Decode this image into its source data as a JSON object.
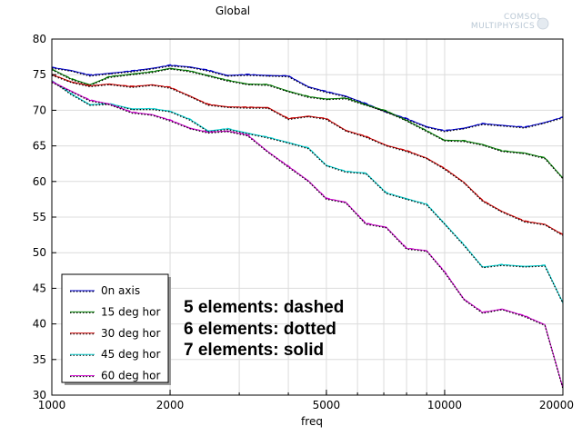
{
  "chart_data": {
    "type": "line",
    "title": "Global",
    "xlabel": "freq",
    "ylabel": "",
    "xscale": "log",
    "xlim": [
      1000,
      20000
    ],
    "ylim": [
      30,
      80
    ],
    "grid": true,
    "legend_position": "bottom-left",
    "x_ticks": [
      1000,
      2000,
      5000,
      10000,
      20000
    ],
    "x_tick_labels": [
      "1000",
      "2000",
      "5000",
      "10000",
      "20000"
    ],
    "y_ticks": [
      30,
      35,
      40,
      45,
      50,
      55,
      60,
      65,
      70,
      75,
      80
    ],
    "y_tick_labels": [
      "30",
      "35",
      "40",
      "45",
      "50",
      "55",
      "60",
      "65",
      "70",
      "75",
      "80"
    ],
    "annotations": [
      "5 elements: dashed",
      "6 elements: dotted",
      "7 elements: solid"
    ],
    "logo": [
      "COMSOL",
      "MULTIPHYSICS"
    ],
    "series": [
      {
        "name": "0n axis",
        "color": "#0000cc",
        "x": [
          1000,
          1120,
          1250,
          1400,
          1600,
          1800,
          2000,
          2250,
          2500,
          2800,
          3150,
          3550,
          4000,
          4500,
          5000,
          5600,
          6300,
          7100,
          8000,
          9000,
          10000,
          11200,
          12500,
          14000,
          16000,
          18000,
          20000
        ],
        "y": [
          76,
          75.6,
          74.9,
          75.2,
          75.5,
          75.9,
          76.3,
          76.1,
          75.6,
          74.9,
          75,
          74.9,
          74.8,
          73.3,
          72.6,
          72,
          70.9,
          69.8,
          68.8,
          67.7,
          67.1,
          67.5,
          68.1,
          67.9,
          67.6,
          68.3,
          69
        ]
      },
      {
        "name": "15 deg hor",
        "color": "#008000",
        "x": [
          1000,
          1120,
          1250,
          1400,
          1600,
          1800,
          2000,
          2250,
          2500,
          2800,
          3150,
          3550,
          4000,
          4500,
          5000,
          5600,
          6300,
          7100,
          8000,
          9000,
          10000,
          11200,
          12500,
          14000,
          16000,
          18000,
          20000
        ],
        "y": [
          75.8,
          74.4,
          73.6,
          74.7,
          75.1,
          75.4,
          75.9,
          75.5,
          74.9,
          74.2,
          73.7,
          73.6,
          72.7,
          71.9,
          71.6,
          71.7,
          70.8,
          69.9,
          68.6,
          67.1,
          65.8,
          65.7,
          65.2,
          64.3,
          64,
          63.3,
          60.5
        ]
      },
      {
        "name": "30 deg hor",
        "color": "#cc0000",
        "x": [
          1000,
          1120,
          1250,
          1400,
          1600,
          1800,
          2000,
          2250,
          2500,
          2800,
          3150,
          3550,
          4000,
          4500,
          5000,
          5600,
          6300,
          7100,
          8000,
          9000,
          10000,
          11200,
          12500,
          14000,
          16000,
          18000,
          20000
        ],
        "y": [
          75,
          74,
          73.4,
          73.7,
          73.3,
          73.6,
          73.2,
          72,
          70.8,
          70.5,
          70.4,
          70.4,
          68.8,
          69.2,
          68.8,
          67.2,
          66.3,
          65.1,
          64.3,
          63.3,
          61.8,
          59.9,
          57.3,
          55.8,
          54.4,
          54,
          52.5
        ]
      },
      {
        "name": "45 deg hor",
        "color": "#00cccc",
        "x": [
          1000,
          1120,
          1250,
          1400,
          1600,
          1800,
          2000,
          2250,
          2500,
          2800,
          3150,
          3550,
          4000,
          4500,
          5000,
          5600,
          6300,
          7100,
          8000,
          9000,
          10000,
          11200,
          12500,
          14000,
          16000,
          18000,
          20000
        ],
        "y": [
          74.2,
          72.3,
          70.8,
          70.9,
          70.2,
          70.2,
          69.9,
          68.7,
          67.1,
          67.4,
          66.8,
          66.2,
          65.5,
          64.7,
          62.3,
          61.4,
          61.2,
          58.4,
          57.6,
          56.8,
          54.1,
          51.1,
          48,
          48.3,
          48.1,
          48.2,
          43
        ]
      },
      {
        "name": "60 deg hor",
        "color": "#cc00cc",
        "x": [
          1000,
          1120,
          1250,
          1400,
          1600,
          1800,
          2000,
          2250,
          2500,
          2800,
          3150,
          3550,
          4000,
          4500,
          5000,
          5600,
          6300,
          7100,
          8000,
          9000,
          10000,
          11200,
          12500,
          14000,
          16000,
          18000,
          20000
        ],
        "y": [
          74,
          72.7,
          71.4,
          70.9,
          69.7,
          69.4,
          68.6,
          67.5,
          66.9,
          67.1,
          66.5,
          64.2,
          62.1,
          60.1,
          57.6,
          57.1,
          54.1,
          53.6,
          50.6,
          50.3,
          47.3,
          43.5,
          41.6,
          42.1,
          41.1,
          39.9,
          31
        ]
      }
    ]
  }
}
